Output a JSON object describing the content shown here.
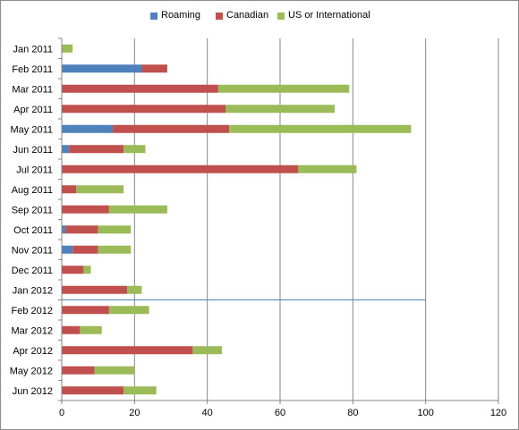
{
  "chart_data": {
    "type": "bar",
    "orientation": "horizontal",
    "stacked": true,
    "title": "",
    "xlabel": "",
    "ylabel": "",
    "xlim": [
      0,
      120
    ],
    "x_ticks": [
      0,
      20,
      40,
      60,
      80,
      100,
      120
    ],
    "grid": true,
    "legend_position": "top",
    "categories": [
      "Jan 2011",
      "Feb 2011",
      "Mar 2011",
      "Apr 2011",
      "May 2011",
      "Jun 2011",
      "Jul 2011",
      "Aug 2011",
      "Sep 2011",
      "Oct 2011",
      "Nov 2011",
      "Dec 2011",
      "Jan 2012",
      "Feb 2012",
      "Mar 2012",
      "Apr 2012",
      "May 2012",
      "Jun 2012"
    ],
    "series": [
      {
        "name": "Roaming",
        "color": "#4f81bd",
        "values": [
          0,
          22,
          0,
          0,
          14,
          2,
          0,
          0,
          0,
          1,
          3,
          0,
          0,
          0,
          0,
          0,
          0,
          0
        ]
      },
      {
        "name": "Canadian",
        "color": "#c0504d",
        "values": [
          0,
          7,
          43,
          45,
          32,
          15,
          65,
          4,
          13,
          9,
          7,
          6,
          18,
          13,
          5,
          36,
          9,
          17
        ]
      },
      {
        "name": "US or International",
        "color": "#9bbb59",
        "values": [
          3,
          0,
          36,
          30,
          50,
          6,
          16,
          13,
          16,
          9,
          9,
          2,
          4,
          11,
          6,
          8,
          11,
          9
        ]
      }
    ],
    "reference_line": {
      "between_categories": [
        "Jan 2012",
        "Feb 2012"
      ],
      "x_range": [
        0,
        100
      ],
      "color": "#4f81bd"
    }
  }
}
